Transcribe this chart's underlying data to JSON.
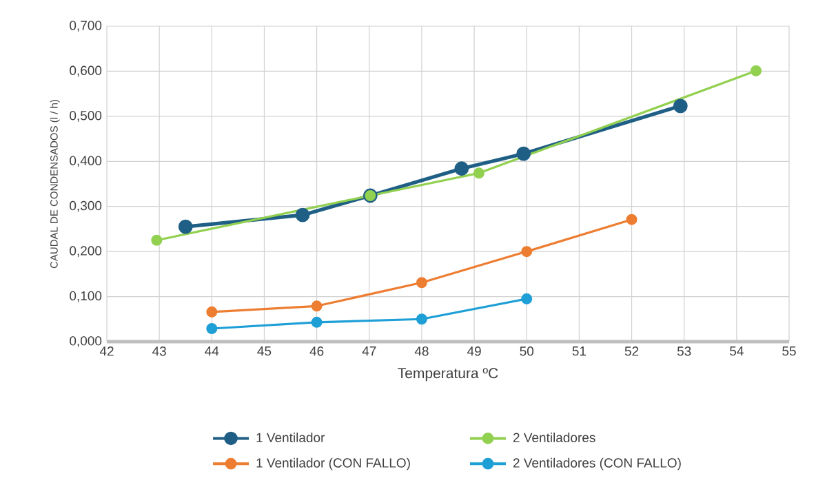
{
  "chart_data": {
    "type": "line",
    "xlabel": "Temperatura ºC",
    "ylabel": "CAUDAL DE CONDENSADOS (l / h)",
    "xlim": [
      42,
      55
    ],
    "xticks": [
      42,
      43,
      44,
      45,
      46,
      47,
      48,
      49,
      50,
      51,
      52,
      53,
      54,
      55
    ],
    "ylim": [
      0,
      0.7
    ],
    "yticks": [
      {
        "value": 0,
        "label": "0,000"
      },
      {
        "value": 0.1,
        "label": "0,100"
      },
      {
        "value": 0.2,
        "label": "0,200"
      },
      {
        "value": 0.3,
        "label": "0,300"
      },
      {
        "value": 0.4,
        "label": "0,400"
      },
      {
        "value": 0.5,
        "label": "0,500"
      },
      {
        "value": 0.6,
        "label": "0,600"
      },
      {
        "value": 0.7,
        "label": "0,700"
      }
    ],
    "grid": true,
    "legend": "bottom",
    "marker": "circle",
    "line_style": "solid",
    "series": [
      {
        "name": "1 Ventilador",
        "color": "#1f5f85",
        "x": [
          43.5,
          45.73,
          47.02,
          48.76,
          49.94,
          52.93
        ],
        "values": [
          0.255,
          0.281,
          0.324,
          0.384,
          0.417,
          0.523
        ]
      },
      {
        "name": "2 Ventiladores",
        "color": "#92d050",
        "x": [
          42.95,
          47.02,
          49.09,
          54.37
        ],
        "values": [
          0.225,
          0.324,
          0.374,
          0.601
        ]
      },
      {
        "name": "1 Ventilador (CON FALLO)",
        "color": "#ed7d31",
        "x": [
          44,
          46,
          48,
          50,
          52
        ],
        "values": [
          0.066,
          0.079,
          0.131,
          0.2,
          0.271
        ]
      },
      {
        "name": "2 Ventiladores (CON FALLO)",
        "color": "#1e9fd6",
        "x": [
          44,
          46,
          48,
          50
        ],
        "values": [
          0.029,
          0.043,
          0.05,
          0.095
        ]
      }
    ]
  }
}
